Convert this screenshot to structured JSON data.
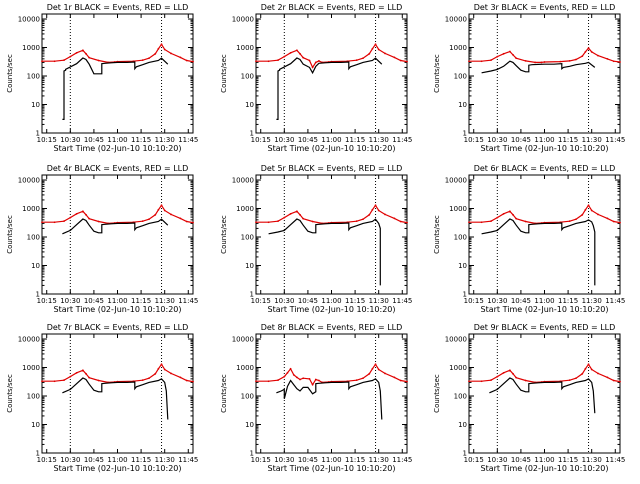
{
  "colors": {
    "events": "#000000",
    "lld": "#e00000",
    "axis": "#000000"
  },
  "shared_axes": {
    "x_tick_labels": [
      "10:15",
      "10:30",
      "10:45",
      "11:00",
      "11:15",
      "11:30",
      "11:45"
    ],
    "x_ticks_minutes": [
      15,
      30,
      45,
      60,
      75,
      90,
      105
    ],
    "x_range_minutes": [
      12,
      108
    ],
    "x_label": "Start Time (02-Jun-10 10:10:20)",
    "y_tick_labels": [
      "1",
      "10",
      "100",
      "1000",
      "10000"
    ],
    "y_ticks": [
      1,
      10,
      100,
      1000,
      10000
    ],
    "y_range": [
      1,
      15000
    ],
    "y_scale": "log",
    "y_label": "Counts/sec",
    "dotted_verticals_minutes": [
      30,
      88
    ]
  },
  "chart_data": [
    {
      "type": "line",
      "title": "Det 1r BLACK = Events, RED = LLD",
      "series": [
        {
          "name": "LLD",
          "x": [
            12,
            20,
            26,
            30,
            34,
            38,
            40,
            42,
            48,
            54,
            58,
            60,
            70,
            76,
            80,
            84,
            86,
            88,
            90,
            94,
            100,
            104,
            108
          ],
          "y": [
            330,
            330,
            360,
            480,
            650,
            800,
            600,
            440,
            350,
            300,
            310,
            320,
            330,
            360,
            420,
            600,
            900,
            1300,
            850,
            620,
            450,
            350,
            320
          ]
        },
        {
          "name": "Events",
          "x": [
            25,
            26,
            26,
            27,
            27,
            34,
            38,
            40,
            42,
            45,
            48,
            50,
            50,
            52,
            56,
            60,
            66,
            71,
            71,
            72,
            76,
            80,
            86,
            88,
            92
          ],
          "y": [
            3,
            3,
            150,
            160,
            170,
            270,
            430,
            380,
            260,
            120,
            120,
            120,
            270,
            280,
            290,
            300,
            300,
            310,
            180,
            210,
            250,
            300,
            350,
            420,
            260
          ]
        }
      ]
    },
    {
      "type": "line",
      "title": "Det 2r BLACK = Events, RED = LLD",
      "series": [
        {
          "name": "LLD",
          "x": [
            12,
            20,
            26,
            30,
            34,
            38,
            40,
            42,
            46,
            48,
            50,
            52,
            54,
            58,
            60,
            70,
            76,
            80,
            84,
            86,
            88,
            90,
            94,
            100,
            104,
            108
          ],
          "y": [
            330,
            330,
            360,
            480,
            650,
            800,
            600,
            440,
            350,
            200,
            300,
            340,
            300,
            310,
            320,
            330,
            360,
            420,
            600,
            900,
            1300,
            850,
            620,
            450,
            350,
            320
          ]
        },
        {
          "name": "Events",
          "x": [
            25,
            26,
            26,
            27,
            27,
            34,
            38,
            40,
            42,
            46,
            48,
            50,
            52,
            56,
            60,
            66,
            71,
            71,
            72,
            76,
            80,
            86,
            88,
            92
          ],
          "y": [
            3,
            3,
            150,
            160,
            170,
            270,
            430,
            380,
            260,
            200,
            130,
            220,
            280,
            290,
            300,
            300,
            310,
            180,
            210,
            250,
            300,
            350,
            420,
            260
          ]
        }
      ]
    },
    {
      "type": "line",
      "title": "Det 3r BLACK = Events, RED = LLD",
      "series": [
        {
          "name": "LLD",
          "x": [
            12,
            20,
            26,
            30,
            34,
            38,
            40,
            42,
            48,
            54,
            58,
            60,
            70,
            76,
            80,
            84,
            86,
            88,
            90,
            94,
            100,
            104,
            108
          ],
          "y": [
            330,
            330,
            360,
            480,
            600,
            720,
            550,
            420,
            340,
            300,
            300,
            310,
            320,
            340,
            380,
            500,
            700,
            950,
            700,
            520,
            400,
            330,
            310
          ]
        },
        {
          "name": "Events",
          "x": [
            20,
            26,
            30,
            34,
            38,
            40,
            42,
            45,
            48,
            50,
            50,
            52,
            56,
            60,
            66,
            71,
            71,
            72,
            76,
            80,
            86,
            88,
            92
          ],
          "y": [
            130,
            150,
            170,
            220,
            330,
            300,
            230,
            160,
            140,
            140,
            240,
            250,
            255,
            260,
            260,
            270,
            180,
            200,
            220,
            250,
            280,
            300,
            200
          ]
        }
      ]
    },
    {
      "type": "line",
      "title": "Det 4r BLACK = Events, RED = LLD",
      "series": [
        {
          "name": "LLD",
          "x": [
            12,
            20,
            26,
            30,
            34,
            38,
            40,
            42,
            48,
            54,
            58,
            60,
            70,
            76,
            80,
            84,
            86,
            88,
            90,
            94,
            100,
            104,
            108
          ],
          "y": [
            330,
            330,
            360,
            480,
            650,
            800,
            600,
            440,
            350,
            300,
            310,
            320,
            330,
            360,
            420,
            600,
            900,
            1300,
            850,
            620,
            450,
            350,
            320
          ]
        },
        {
          "name": "Events",
          "x": [
            25,
            30,
            34,
            38,
            40,
            42,
            45,
            48,
            50,
            50,
            52,
            56,
            60,
            66,
            71,
            71,
            72,
            76,
            80,
            86,
            88,
            92
          ],
          "y": [
            130,
            170,
            270,
            430,
            380,
            260,
            160,
            140,
            140,
            270,
            280,
            290,
            300,
            300,
            310,
            180,
            210,
            250,
            300,
            350,
            420,
            260
          ]
        }
      ]
    },
    {
      "type": "line",
      "title": "Det 5r BLACK = Events, RED = LLD",
      "series": [
        {
          "name": "LLD",
          "x": [
            12,
            20,
            26,
            30,
            34,
            38,
            40,
            42,
            48,
            54,
            58,
            60,
            70,
            76,
            80,
            84,
            86,
            88,
            90,
            94,
            100,
            104,
            108
          ],
          "y": [
            330,
            330,
            360,
            480,
            650,
            800,
            600,
            440,
            350,
            300,
            310,
            320,
            330,
            360,
            420,
            600,
            900,
            1300,
            850,
            620,
            450,
            350,
            320
          ]
        },
        {
          "name": "Events",
          "x": [
            20,
            26,
            30,
            34,
            38,
            40,
            42,
            45,
            48,
            50,
            50,
            52,
            56,
            60,
            66,
            71,
            71,
            72,
            76,
            80,
            86,
            88,
            90,
            91,
            91
          ],
          "y": [
            130,
            150,
            170,
            270,
            430,
            380,
            260,
            160,
            140,
            140,
            270,
            280,
            290,
            300,
            300,
            310,
            180,
            210,
            250,
            300,
            350,
            420,
            300,
            200,
            2
          ]
        }
      ]
    },
    {
      "type": "line",
      "title": "Det 6r BLACK = Events, RED = LLD",
      "series": [
        {
          "name": "LLD",
          "x": [
            12,
            20,
            26,
            30,
            34,
            38,
            40,
            42,
            48,
            54,
            58,
            60,
            70,
            76,
            80,
            84,
            86,
            88,
            90,
            94,
            100,
            104,
            108
          ],
          "y": [
            330,
            330,
            360,
            480,
            650,
            800,
            600,
            440,
            350,
            300,
            310,
            320,
            330,
            360,
            420,
            600,
            900,
            1300,
            850,
            620,
            450,
            350,
            320
          ]
        },
        {
          "name": "Events",
          "x": [
            20,
            26,
            30,
            34,
            38,
            40,
            42,
            45,
            48,
            50,
            50,
            52,
            56,
            60,
            66,
            71,
            71,
            72,
            76,
            80,
            86,
            88,
            90,
            91,
            92,
            92
          ],
          "y": [
            130,
            150,
            170,
            270,
            430,
            380,
            260,
            160,
            140,
            140,
            270,
            280,
            290,
            300,
            300,
            310,
            180,
            210,
            250,
            300,
            350,
            400,
            340,
            250,
            150,
            2
          ]
        }
      ]
    },
    {
      "type": "line",
      "title": "Det 7r BLACK = Events, RED = LLD",
      "series": [
        {
          "name": "LLD",
          "x": [
            12,
            20,
            26,
            30,
            34,
            38,
            40,
            42,
            48,
            54,
            58,
            60,
            70,
            76,
            80,
            84,
            86,
            88,
            90,
            94,
            100,
            104,
            108
          ],
          "y": [
            330,
            330,
            360,
            480,
            650,
            800,
            600,
            440,
            350,
            300,
            310,
            320,
            330,
            360,
            420,
            600,
            900,
            1300,
            850,
            620,
            450,
            350,
            320
          ]
        },
        {
          "name": "Events",
          "x": [
            25,
            30,
            34,
            38,
            40,
            42,
            45,
            48,
            50,
            50,
            52,
            56,
            60,
            66,
            71,
            71,
            72,
            76,
            80,
            86,
            88,
            90,
            91,
            92
          ],
          "y": [
            130,
            170,
            270,
            430,
            380,
            260,
            160,
            140,
            140,
            270,
            280,
            290,
            300,
            300,
            310,
            180,
            210,
            250,
            300,
            350,
            400,
            300,
            150,
            15
          ]
        }
      ]
    },
    {
      "type": "line",
      "title": "Det 8r BLACK = Events, RED = LLD",
      "series": [
        {
          "name": "LLD",
          "x": [
            12,
            20,
            26,
            30,
            32,
            34,
            36,
            38,
            40,
            42,
            46,
            48,
            50,
            52,
            54,
            58,
            60,
            70,
            76,
            80,
            84,
            86,
            88,
            90,
            94,
            100,
            104,
            108
          ],
          "y": [
            330,
            330,
            360,
            480,
            650,
            900,
            550,
            450,
            380,
            420,
            400,
            250,
            380,
            350,
            300,
            310,
            320,
            330,
            360,
            420,
            600,
            900,
            1300,
            850,
            620,
            450,
            350,
            320
          ]
        },
        {
          "name": "Events",
          "x": [
            25,
            28,
            30,
            30,
            32,
            34,
            36,
            38,
            40,
            42,
            45,
            48,
            50,
            50,
            52,
            56,
            60,
            66,
            71,
            71,
            72,
            76,
            80,
            86,
            88,
            90,
            91,
            92
          ],
          "y": [
            130,
            150,
            170,
            80,
            220,
            350,
            250,
            180,
            150,
            200,
            200,
            120,
            140,
            270,
            280,
            290,
            300,
            300,
            310,
            180,
            210,
            250,
            300,
            350,
            400,
            300,
            150,
            15
          ]
        }
      ]
    },
    {
      "type": "line",
      "title": "Det 9r BLACK = Events, RED = LLD",
      "series": [
        {
          "name": "LLD",
          "x": [
            12,
            20,
            26,
            30,
            34,
            38,
            40,
            42,
            48,
            54,
            58,
            60,
            70,
            76,
            80,
            84,
            86,
            88,
            90,
            94,
            100,
            104,
            108
          ],
          "y": [
            330,
            330,
            360,
            480,
            650,
            800,
            600,
            440,
            350,
            300,
            310,
            320,
            330,
            360,
            420,
            600,
            900,
            1300,
            850,
            620,
            450,
            350,
            320
          ]
        },
        {
          "name": "Events",
          "x": [
            25,
            30,
            34,
            38,
            40,
            42,
            45,
            48,
            50,
            50,
            52,
            56,
            60,
            66,
            71,
            71,
            72,
            76,
            80,
            86,
            88,
            90,
            91,
            92
          ],
          "y": [
            130,
            170,
            270,
            430,
            380,
            260,
            160,
            140,
            140,
            270,
            280,
            290,
            300,
            300,
            310,
            180,
            210,
            250,
            300,
            350,
            400,
            300,
            150,
            25
          ]
        }
      ]
    }
  ]
}
